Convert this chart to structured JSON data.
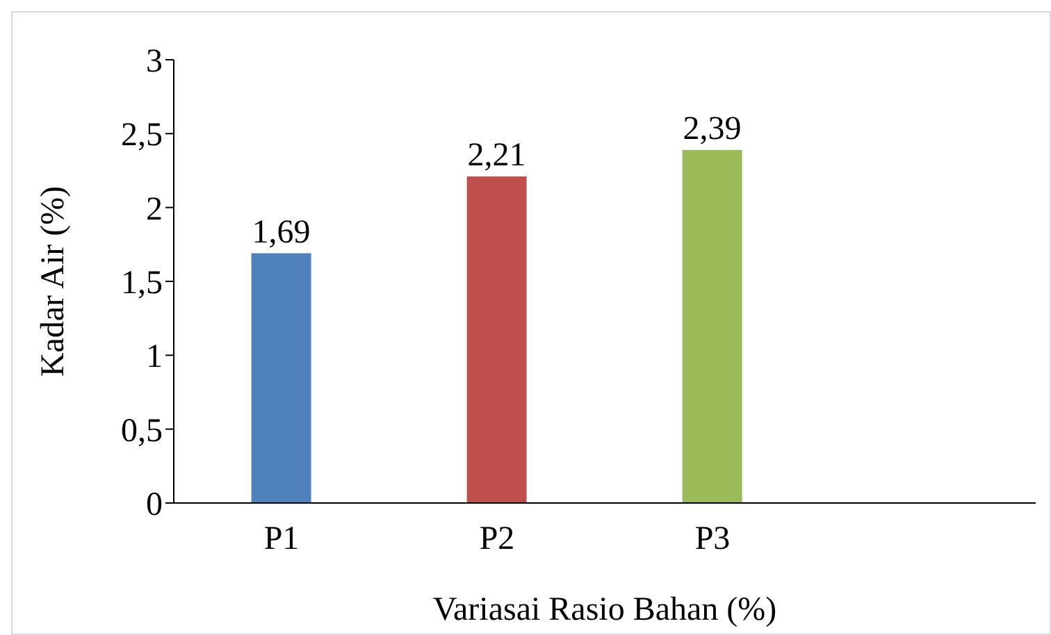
{
  "chart_data": {
    "type": "bar",
    "xlabel": "Variasai Rasio Bahan (%)",
    "ylabel": "Kadar Air (%)",
    "categories": [
      "P1",
      "P2",
      "P3",
      null
    ],
    "values": [
      1.69,
      2.21,
      2.39,
      null
    ],
    "colors": [
      "#4f81bd",
      "#c0504d",
      "#9bbb59",
      null
    ],
    "value_labels": [
      "1,69",
      "2,21",
      "2,39",
      null
    ],
    "ylim": [
      0,
      3
    ],
    "yticks": [
      0,
      {
        "value": 0.5,
        "label": "0,5"
      },
      1,
      {
        "value": 1.5,
        "label": "1,5"
      },
      2,
      {
        "value": 2.5,
        "label": "2,5"
      },
      3
    ],
    "grid": false,
    "legend": false
  }
}
